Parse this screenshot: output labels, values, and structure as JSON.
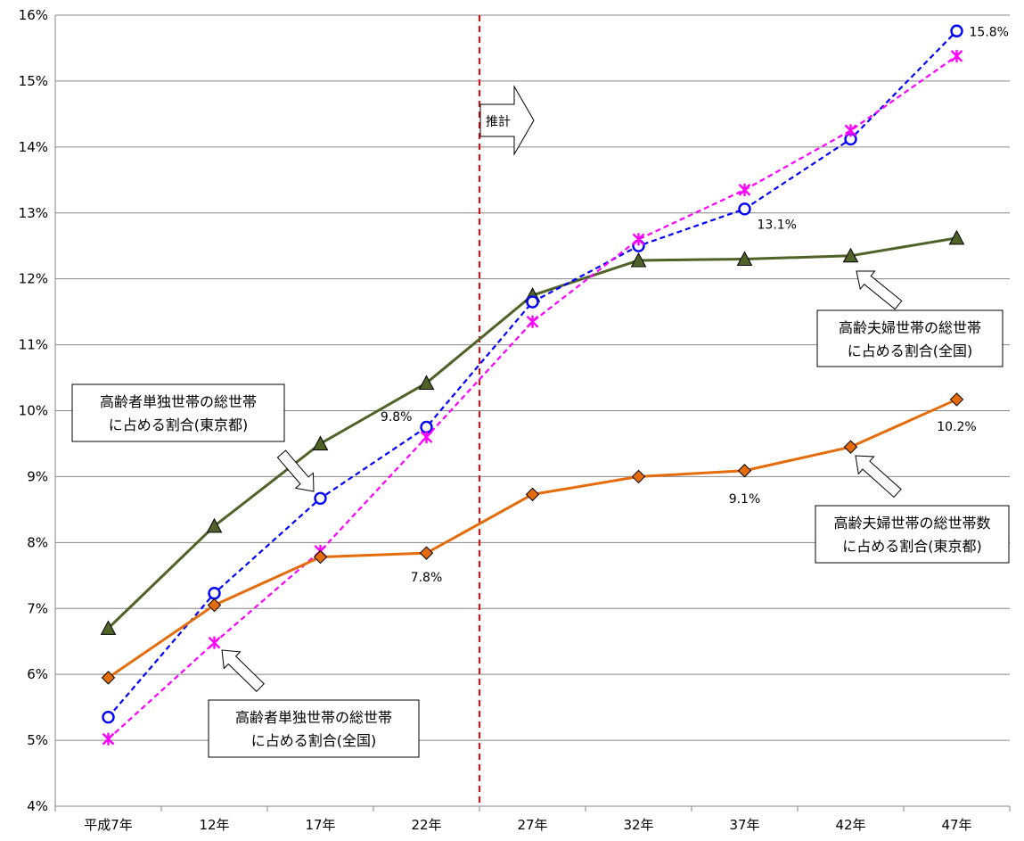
{
  "chart_data": {
    "type": "line",
    "categories": [
      "平成7年",
      "12年",
      "17年",
      "22年",
      "27年",
      "32年",
      "37年",
      "42年",
      "47年"
    ],
    "ylim": [
      4,
      16
    ],
    "yticks": [
      "4%",
      "5%",
      "6%",
      "7%",
      "8%",
      "9%",
      "10%",
      "11%",
      "12%",
      "13%",
      "14%",
      "15%",
      "16%"
    ],
    "grid": true,
    "projection_label": "推計",
    "projection_start": "27年",
    "series": [
      {
        "id": "couple_national",
        "values": [
          6.7,
          8.25,
          9.5,
          10.42,
          11.75,
          12.28,
          12.3,
          12.35,
          12.62
        ],
        "color": "#4f6228",
        "marker": "triangle",
        "marker_fill": "#4f6228",
        "dash": false
      },
      {
        "id": "single_tokyo",
        "values": [
          5.35,
          7.23,
          8.67,
          9.75,
          11.65,
          12.5,
          13.06,
          14.12,
          15.76
        ],
        "color": "#0000ff",
        "marker": "circle",
        "marker_fill": "#ffffff",
        "dash": true
      },
      {
        "id": "single_national",
        "values": [
          5.02,
          6.48,
          7.87,
          9.6,
          11.35,
          12.6,
          13.35,
          14.25,
          15.38
        ],
        "color": "#ff00ff",
        "marker": "x",
        "marker_fill": "#ff00ff",
        "dash": true
      },
      {
        "id": "couple_tokyo",
        "values": [
          5.95,
          7.05,
          7.78,
          7.84,
          8.73,
          9.0,
          9.09,
          9.45,
          10.17
        ],
        "color": "#e46c0a",
        "marker": "diamond",
        "marker_fill": "#e46c0a",
        "dash": false
      }
    ],
    "data_labels": [
      {
        "series": "single_tokyo",
        "index": 8,
        "text": "15.8%"
      },
      {
        "series": "single_tokyo",
        "index": 6,
        "text": "13.1%"
      },
      {
        "series": "single_tokyo",
        "index": 3,
        "text": "9.8%"
      },
      {
        "series": "couple_tokyo",
        "index": 3,
        "text": "7.8%"
      },
      {
        "series": "couple_tokyo",
        "index": 6,
        "text": "9.1%"
      },
      {
        "series": "couple_tokyo",
        "index": 8,
        "text": "10.2%"
      }
    ],
    "annotations": [
      {
        "id": "single_tokyo",
        "lines": [
          "高齢者単独世帯の総世帯",
          "に占める割合(東京都)"
        ]
      },
      {
        "id": "single_national",
        "lines": [
          "高齢者単独世帯の総世帯",
          "に占める割合(全国)"
        ]
      },
      {
        "id": "couple_national",
        "lines": [
          "高齢夫婦世帯の総世帯",
          "に占める割合(全国)"
        ]
      },
      {
        "id": "couple_tokyo",
        "lines": [
          "高齢夫婦世帯の総世帯数",
          "に占める割合(東京都)"
        ]
      }
    ]
  }
}
